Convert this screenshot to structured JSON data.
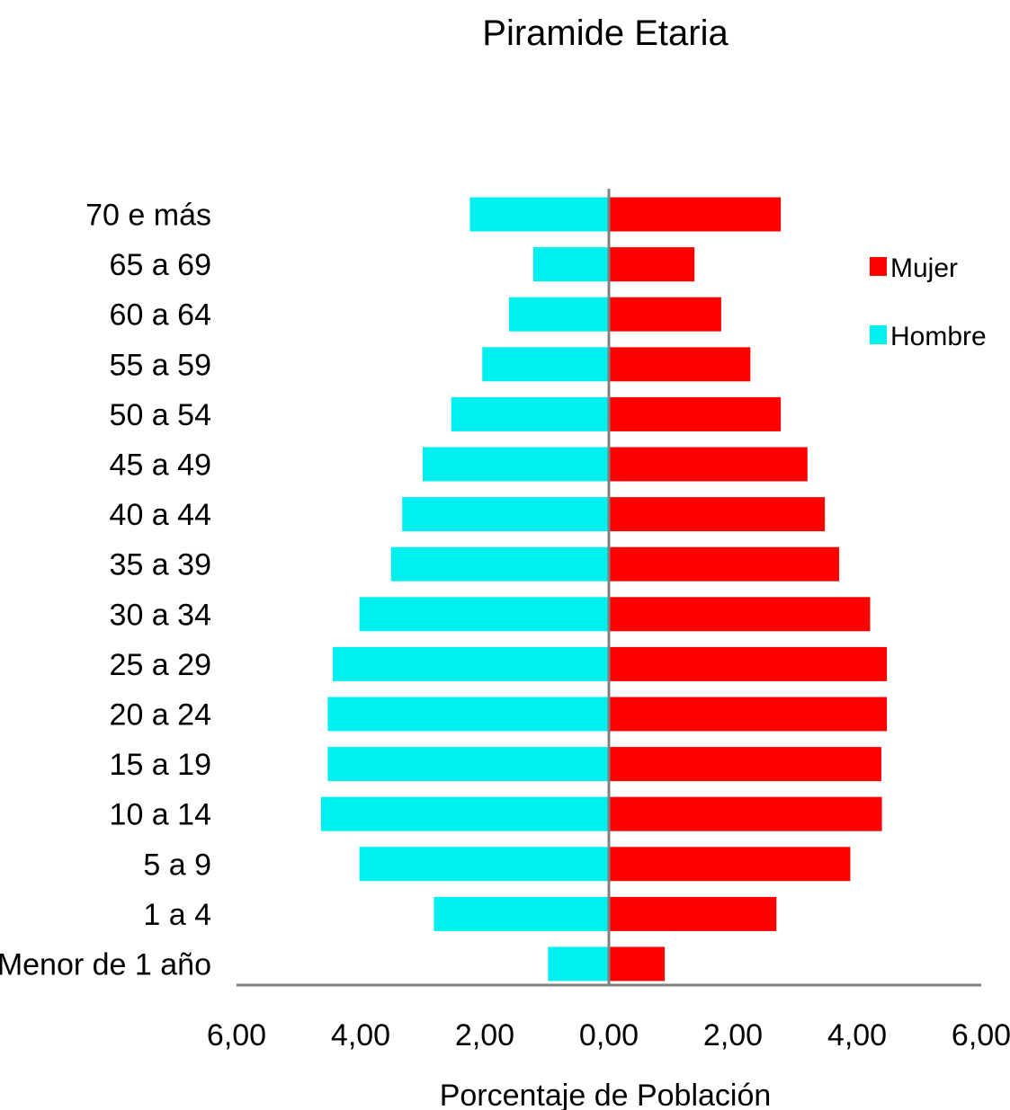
{
  "chart_data": {
    "type": "bar",
    "orientation": "horizontal",
    "title": "Piramide Etaria",
    "xlabel": "Porcentaje de Población",
    "ylabel": "",
    "xlim": [
      -6,
      6
    ],
    "x_ticks": [
      "6,00",
      "4,00",
      "2,00",
      "0,00",
      "2,00",
      "4,00",
      "6,00"
    ],
    "categories": [
      "70 e más",
      "65 a 69",
      "60 a 64",
      "55 a 59",
      "50 a 54",
      "45 a 49",
      "40 a 44",
      "35 a 39",
      "30 a 34",
      "25 a 29",
      "20 a 24",
      "15 a 19",
      "10 a 14",
      "5 a 9",
      "1 a 4",
      "Menor de 1 año"
    ],
    "series": [
      {
        "name": "Mujer",
        "color": "#ff0000",
        "side": "right",
        "values": [
          2.77,
          1.38,
          1.81,
          2.28,
          2.77,
          3.2,
          3.48,
          3.71,
          4.21,
          4.48,
          4.48,
          4.39,
          4.4,
          3.89,
          2.7,
          0.9
        ]
      },
      {
        "name": "Hombre",
        "color": "#00f0f0",
        "side": "left",
        "values": [
          2.24,
          1.22,
          1.61,
          2.04,
          2.54,
          3.0,
          3.33,
          3.51,
          4.02,
          4.45,
          4.53,
          4.53,
          4.64,
          4.02,
          2.82,
          0.98
        ]
      }
    ],
    "legend_position": "top-right",
    "grid": false
  }
}
